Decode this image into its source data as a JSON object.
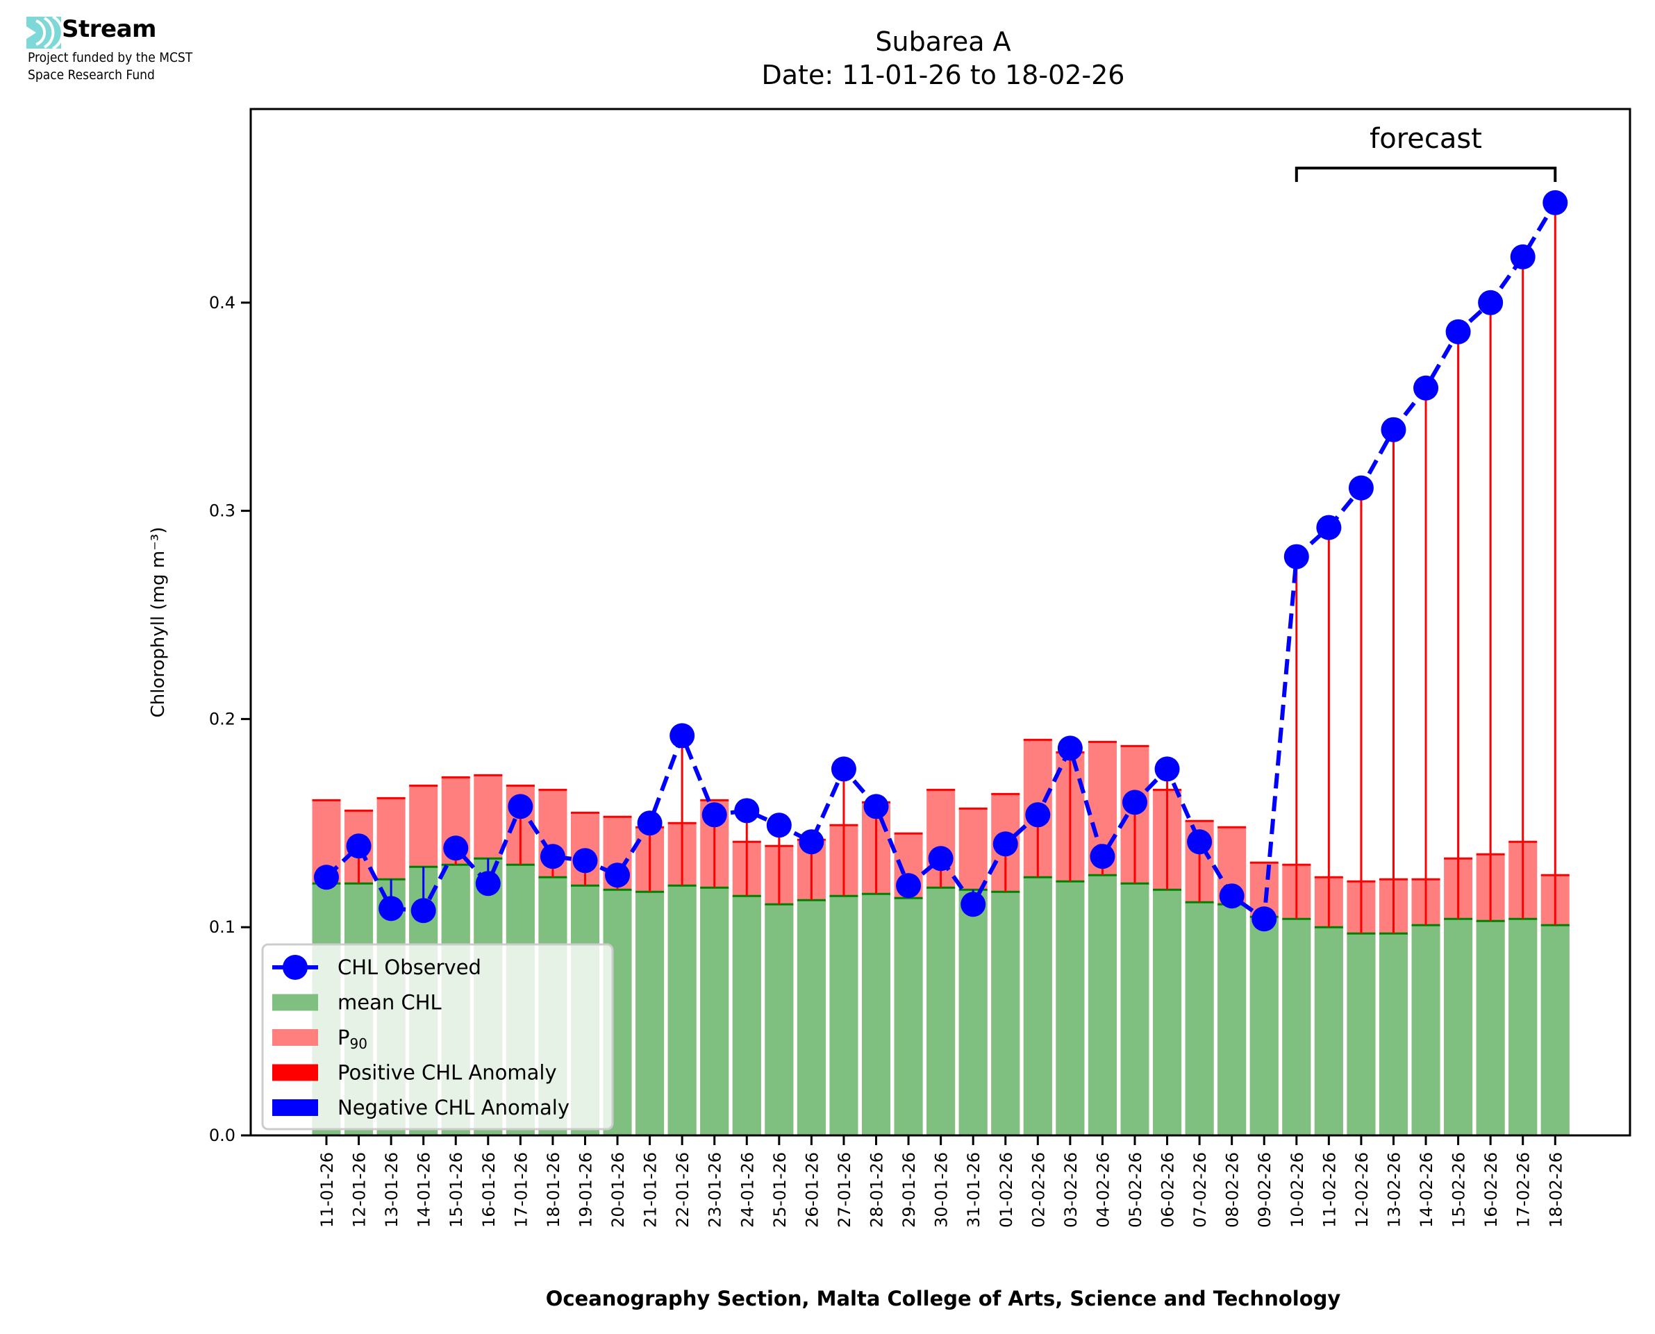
{
  "branding": {
    "logo_icon": "stream-wave-icon",
    "logo_color": "#7fd8d8",
    "name": "Stream",
    "subtitle_line1": "Project funded by the MCST",
    "subtitle_line2": "Space Research Fund"
  },
  "chart_data": {
    "type": "bar",
    "title_line1": "Subarea A",
    "title_line2": "Date: 11-01-26 to 18-02-26",
    "xlabel": "Oceanography Section, Malta College of Arts, Science and Technology",
    "ylabel": "Chlorophyll (mg m⁻³)",
    "ylim": [
      0,
      0.493
    ],
    "yticks": [
      0.0,
      0.1,
      0.2,
      0.3,
      0.4
    ],
    "ytick_labels": [
      "0.0",
      "0.1",
      "0.2",
      "0.3",
      "0.4"
    ],
    "grid": false,
    "categories": [
      "11-01-26",
      "12-01-26",
      "13-01-26",
      "14-01-26",
      "15-01-26",
      "16-01-26",
      "17-01-26",
      "18-01-26",
      "19-01-26",
      "20-01-26",
      "21-01-26",
      "22-01-26",
      "23-01-26",
      "24-01-26",
      "25-01-26",
      "26-01-26",
      "27-01-26",
      "28-01-26",
      "29-01-26",
      "30-01-26",
      "31-01-26",
      "01-02-26",
      "02-02-26",
      "03-02-26",
      "04-02-26",
      "05-02-26",
      "06-02-26",
      "07-02-26",
      "08-02-26",
      "09-02-26",
      "10-02-26",
      "11-02-26",
      "12-02-26",
      "13-02-26",
      "14-02-26",
      "15-02-26",
      "16-02-26",
      "17-02-26",
      "18-02-26"
    ],
    "series": [
      {
        "name": "mean CHL",
        "kind": "bar",
        "color": "#7fbf7f",
        "edge_color": "#008000",
        "values": [
          0.121,
          0.121,
          0.123,
          0.129,
          0.13,
          0.133,
          0.13,
          0.124,
          0.12,
          0.118,
          0.117,
          0.12,
          0.119,
          0.115,
          0.111,
          0.113,
          0.115,
          0.116,
          0.114,
          0.119,
          0.118,
          0.117,
          0.124,
          0.122,
          0.125,
          0.121,
          0.118,
          0.112,
          0.111,
          0.105,
          0.104,
          0.1,
          0.097,
          0.097,
          0.101,
          0.104,
          0.103,
          0.104,
          0.101
        ]
      },
      {
        "name": "P₉₀",
        "kind": "bar",
        "color": "#ff7f7f",
        "edge_color": "#ff0000",
        "values": [
          0.161,
          0.156,
          0.162,
          0.168,
          0.172,
          0.173,
          0.168,
          0.166,
          0.155,
          0.153,
          0.148,
          0.15,
          0.161,
          0.141,
          0.139,
          0.142,
          0.149,
          0.16,
          0.145,
          0.166,
          0.157,
          0.164,
          0.19,
          0.184,
          0.189,
          0.187,
          0.166,
          0.151,
          0.148,
          0.131,
          0.13,
          0.124,
          0.122,
          0.123,
          0.123,
          0.133,
          0.135,
          0.141,
          0.125
        ]
      },
      {
        "name": "CHL Observed",
        "kind": "line",
        "style": "dashed",
        "marker": "circle",
        "color": "#0000ff",
        "values": [
          0.124,
          0.139,
          0.109,
          0.108,
          0.138,
          0.121,
          0.158,
          0.134,
          0.132,
          0.125,
          0.15,
          0.192,
          0.154,
          0.156,
          0.149,
          0.141,
          0.176,
          0.158,
          0.12,
          0.133,
          0.111,
          0.14,
          0.154,
          0.186,
          0.134,
          0.16,
          0.176,
          0.141,
          0.115,
          0.104,
          0.278,
          0.292,
          0.311,
          0.339,
          0.359,
          0.386,
          0.4,
          0.422,
          0.448
        ]
      }
    ],
    "anomaly_colors": {
      "positive": "#ff0000",
      "negative": "#0000ff"
    },
    "legend": {
      "placement": "lower-left",
      "entries": [
        {
          "label": "CHL Observed",
          "swatch": "line-marker",
          "color": "#0000ff"
        },
        {
          "label": "mean CHL",
          "swatch": "patch",
          "color": "#7fbf7f"
        },
        {
          "label": "P",
          "subscript": "90",
          "swatch": "patch",
          "color": "#ff7f7f"
        },
        {
          "label": "Positive CHL Anomaly",
          "swatch": "patch",
          "color": "#ff0000"
        },
        {
          "label": "Negative CHL Anomaly",
          "swatch": "patch",
          "color": "#0000ff"
        }
      ]
    },
    "annotations": [
      {
        "text": "forecast",
        "type": "bracket",
        "from_category": "10-02-26",
        "to_category": "18-02-26",
        "y_value": 0.466
      }
    ]
  }
}
